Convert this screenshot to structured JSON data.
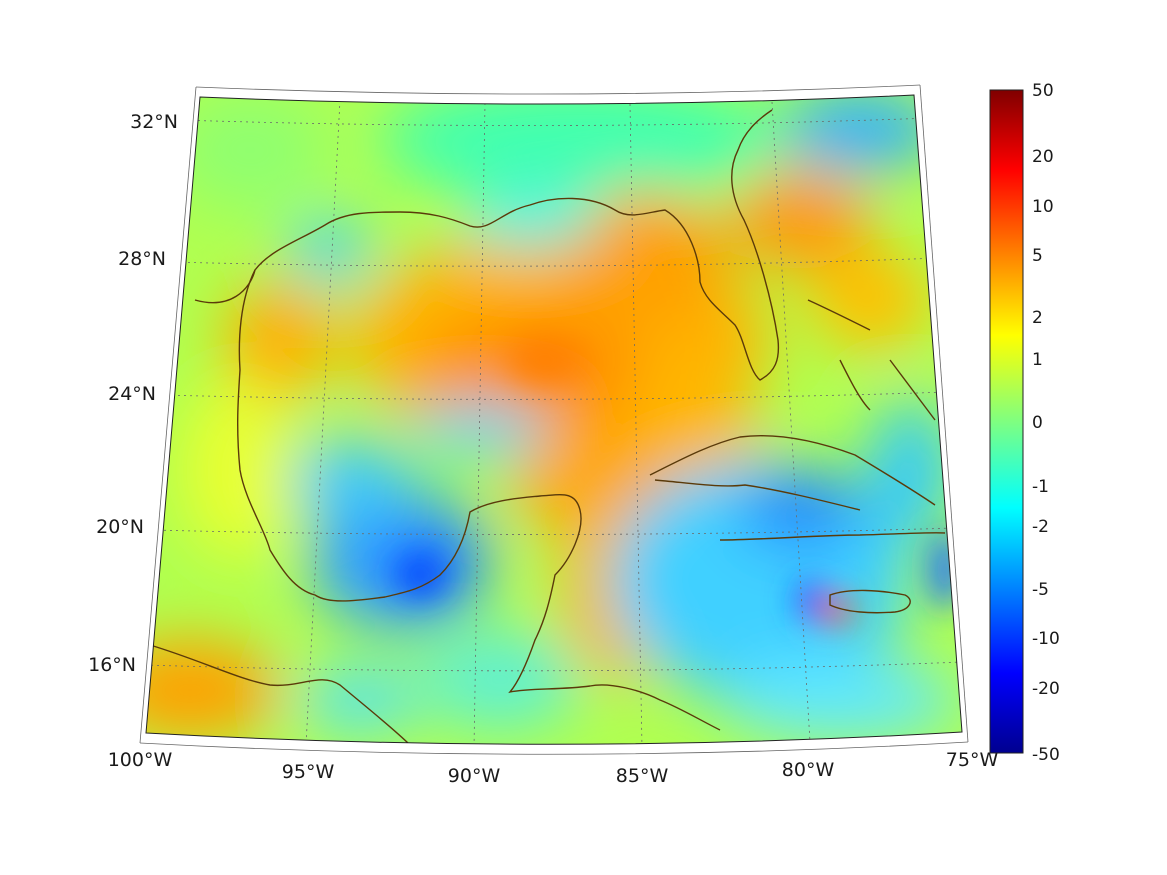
{
  "map": {
    "lon_range_deg": [
      -100,
      -75
    ],
    "lat_range_deg": [
      14,
      33
    ],
    "x_ticks": [
      "100°W",
      "95°W",
      "90°W",
      "85°W",
      "80°W",
      "75°W"
    ],
    "y_ticks": [
      "16°N",
      "20°N",
      "24°N",
      "28°N",
      "32°N"
    ],
    "coastline_color": "#5a3a0a",
    "graticule": "dotted"
  },
  "colorbar": {
    "colormap": "jet",
    "scale": "symmetric nonlinear",
    "labels": [
      "50",
      "20",
      "10",
      "5",
      "2",
      "1",
      "0",
      "-1",
      "-2",
      "-5",
      "-10",
      "-20",
      "-50"
    ]
  }
}
